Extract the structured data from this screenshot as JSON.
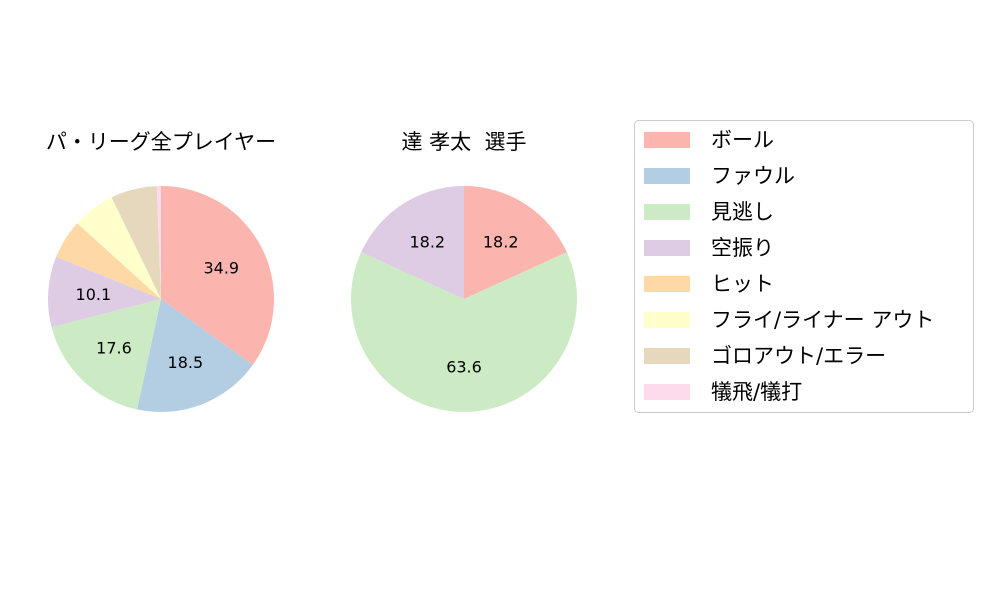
{
  "chart_data": [
    {
      "type": "pie",
      "title": "パ・リーグ全プレイヤー",
      "categories": [
        "ボール",
        "ファウル",
        "見逃し",
        "空振り",
        "ヒット",
        "フライ/ライナー アウト",
        "ゴロアウト/エラー",
        "犠飛/犠打"
      ],
      "values": [
        34.9,
        18.5,
        17.6,
        10.1,
        5.6,
        6.1,
        6.6,
        0.6
      ],
      "labels": [
        "34.9",
        "18.5",
        "17.6",
        "10.1",
        "",
        "",
        "",
        ""
      ],
      "start_angle": "12 o'clock",
      "direction": "clockwise"
    },
    {
      "type": "pie",
      "title": "達 孝太  選手",
      "categories": [
        "ボール",
        "ファウル",
        "見逃し",
        "空振り",
        "ヒット",
        "フライ/ライナー アウト",
        "ゴロアウト/エラー",
        "犠飛/犠打"
      ],
      "values": [
        18.2,
        0,
        63.6,
        18.2,
        0,
        0,
        0,
        0
      ],
      "labels": [
        "18.2",
        "",
        "63.6",
        "18.2",
        "",
        "",
        "",
        ""
      ],
      "start_angle": "12 o'clock",
      "direction": "clockwise"
    }
  ],
  "legend": {
    "position": "right",
    "items": [
      {
        "label": "ボール",
        "color": "#fbb4ae"
      },
      {
        "label": "ファウル",
        "color": "#b3cde3"
      },
      {
        "label": "見逃し",
        "color": "#ccebc5"
      },
      {
        "label": "空振り",
        "color": "#decbe4"
      },
      {
        "label": "ヒット",
        "color": "#fed9a6"
      },
      {
        "label": "フライ/ライナー アウト",
        "color": "#ffffcc"
      },
      {
        "label": "ゴロアウト/エラー",
        "color": "#e5d8bd"
      },
      {
        "label": "犠飛/犠打",
        "color": "#fddaec"
      }
    ]
  }
}
